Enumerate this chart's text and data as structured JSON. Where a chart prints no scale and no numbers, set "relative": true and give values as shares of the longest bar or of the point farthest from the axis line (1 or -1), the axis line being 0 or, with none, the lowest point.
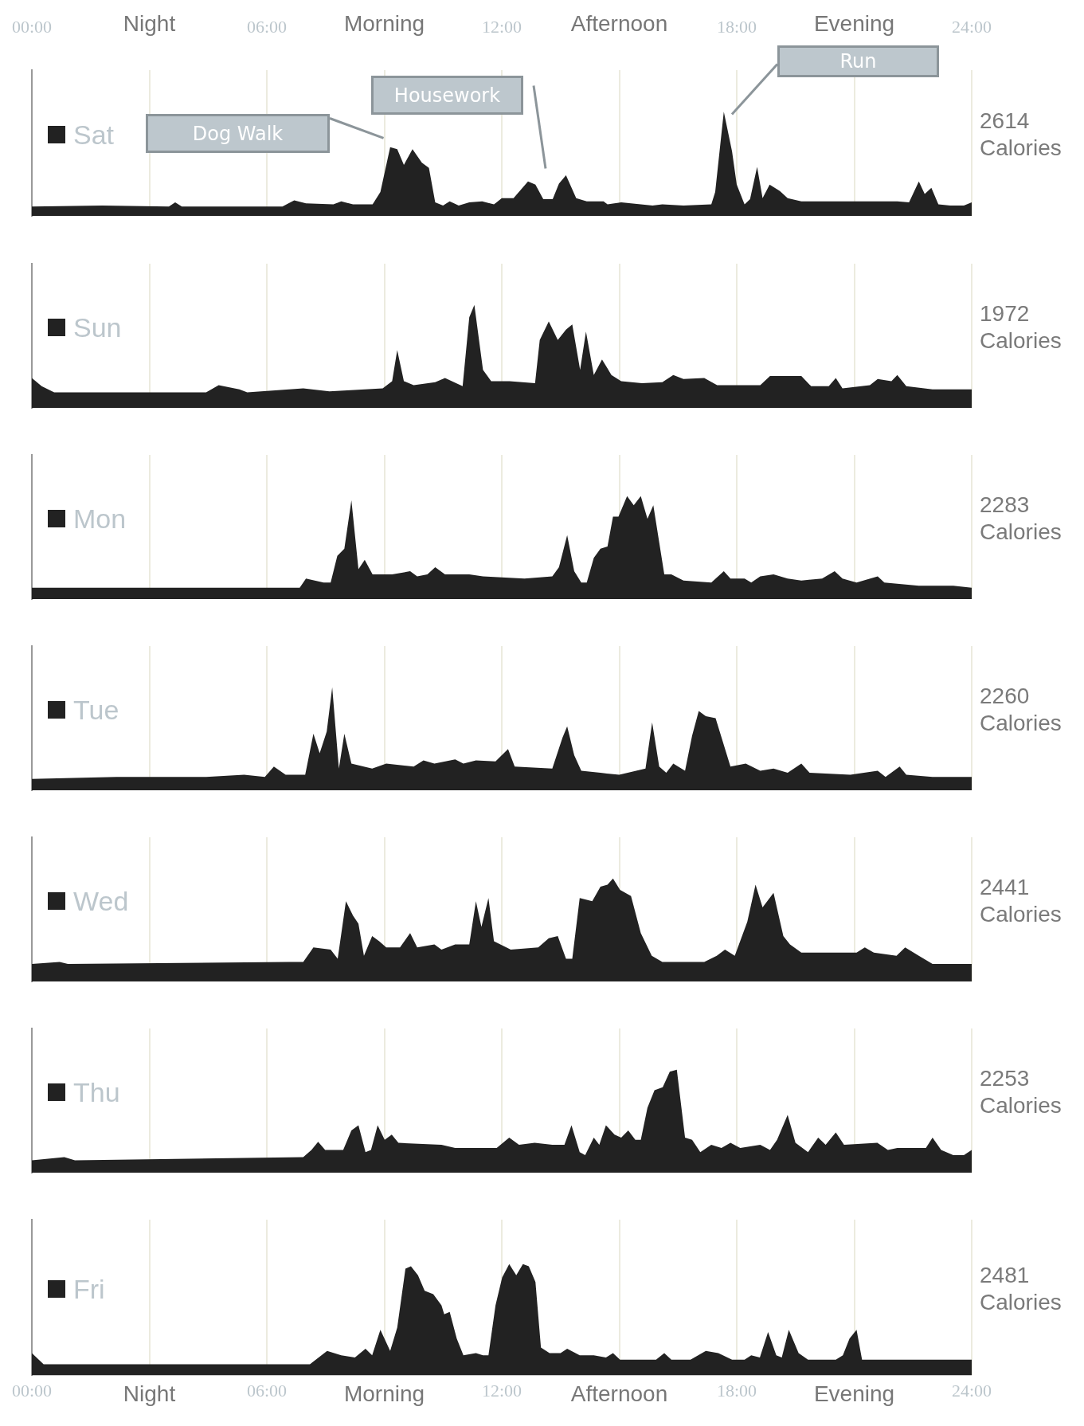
{
  "chart_data": [
    {
      "type": "area",
      "relative": true,
      "grid": "x",
      "legend": "left",
      "xlim": [
        0,
        24
      ],
      "xticks": [
        {
          "value": 0,
          "label": "00:00"
        },
        {
          "value": 3,
          "label": "Night"
        },
        {
          "value": 6,
          "label": "06:00"
        },
        {
          "value": 9,
          "label": "Morning"
        },
        {
          "value": 12,
          "label": "12:00"
        },
        {
          "value": 15,
          "label": "Afternoon"
        },
        {
          "value": 18,
          "label": "18:00"
        },
        {
          "value": 21,
          "label": "Evening"
        },
        {
          "value": 24,
          "label": "24:00"
        }
      ],
      "x": [
        0,
        1.8,
        3.5,
        3.66,
        3.83,
        6.4,
        6.7,
        7.0,
        7.7,
        7.9,
        8.2,
        8.7,
        8.9,
        9.15,
        9.33,
        9.5,
        9.72,
        9.96,
        10.14,
        10.3,
        10.5,
        10.67,
        10.9,
        11.17,
        11.5,
        11.8,
        12.0,
        12.3,
        12.67,
        12.86,
        13.06,
        13.3,
        13.46,
        13.64,
        13.9,
        14.17,
        14.6,
        14.7,
        15.05,
        15.85,
        16.1,
        16.64,
        17.35,
        17.45,
        17.67,
        17.88,
        18.0,
        18.2,
        18.34,
        18.52,
        18.66,
        18.84,
        19.1,
        19.3,
        19.65,
        20.35,
        21.24,
        22.1,
        22.4,
        22.65,
        22.8,
        22.97,
        23.15,
        23.45,
        23.8,
        24
      ],
      "series": [
        {
          "name": "Sat",
          "color": "#222222",
          "values": [
            0.09,
            0.1,
            0.09,
            0.13,
            0.09,
            0.09,
            0.15,
            0.12,
            0.11,
            0.14,
            0.11,
            0.11,
            0.23,
            0.66,
            0.64,
            0.49,
            0.64,
            0.51,
            0.46,
            0.13,
            0.1,
            0.14,
            0.1,
            0.13,
            0.14,
            0.11,
            0.17,
            0.17,
            0.33,
            0.3,
            0.16,
            0.16,
            0.31,
            0.39,
            0.17,
            0.14,
            0.14,
            0.11,
            0.13,
            0.1,
            0.11,
            0.1,
            0.11,
            0.23,
            1,
            0.62,
            0.3,
            0.11,
            0.16,
            0.47,
            0.17,
            0.3,
            0.24,
            0.17,
            0.14,
            0.14,
            0.14,
            0.14,
            0.13,
            0.33,
            0.21,
            0.27,
            0.11,
            0.1,
            0.1,
            0.13
          ]
        }
      ],
      "annotations": [
        "Dog Walk",
        "Housework",
        "Run",
        "2614 Calories"
      ]
    },
    {
      "type": "area",
      "relative": true,
      "grid": "x",
      "legend": "left",
      "tick_labels": false,
      "xlim": [
        0,
        24
      ],
      "xticks": [
        0,
        3,
        6,
        9,
        12,
        15,
        18,
        21,
        24
      ],
      "x": [
        0,
        0.25,
        0.57,
        4.45,
        4.77,
        5.3,
        5.5,
        6.93,
        7.6,
        8.96,
        9.2,
        9.33,
        9.5,
        9.75,
        10.3,
        10.55,
        11.0,
        11.17,
        11.3,
        11.52,
        11.73,
        12.2,
        12.85,
        12.97,
        13.2,
        13.43,
        13.64,
        13.8,
        14.0,
        14.15,
        14.35,
        14.56,
        14.8,
        15.05,
        15.58,
        16.1,
        16.38,
        16.64,
        17.17,
        17.5,
        18.6,
        18.85,
        19.65,
        19.9,
        20.35,
        20.53,
        20.7,
        21.4,
        21.6,
        21.95,
        22.1,
        22.33,
        23,
        24
      ],
      "series": [
        {
          "name": "Sun",
          "color": "#222222",
          "values": [
            0.29,
            0.21,
            0.15,
            0.15,
            0.22,
            0.18,
            0.15,
            0.19,
            0.16,
            0.19,
            0.26,
            0.56,
            0.26,
            0.22,
            0.25,
            0.29,
            0.21,
            0.88,
            1,
            0.37,
            0.26,
            0.26,
            0.24,
            0.66,
            0.84,
            0.66,
            0.76,
            0.81,
            0.37,
            0.74,
            0.32,
            0.47,
            0.32,
            0.26,
            0.24,
            0.25,
            0.32,
            0.28,
            0.29,
            0.22,
            0.22,
            0.31,
            0.31,
            0.21,
            0.21,
            0.29,
            0.19,
            0.22,
            0.28,
            0.26,
            0.32,
            0.21,
            0.18,
            0.18
          ]
        }
      ],
      "annotations": [
        "1972 Calories"
      ]
    },
    {
      "type": "area",
      "relative": true,
      "grid": "x",
      "legend": "left",
      "tick_labels": false,
      "xlim": [
        0,
        24
      ],
      "xticks": [
        0,
        3,
        6,
        9,
        12,
        15,
        18,
        21,
        24
      ],
      "x": [
        0,
        6.84,
        7.0,
        7.45,
        7.63,
        7.8,
        7.98,
        8.16,
        8.34,
        8.5,
        8.7,
        9.2,
        9.66,
        9.84,
        10.1,
        10.3,
        10.55,
        11.17,
        11.52,
        12.58,
        13.29,
        13.46,
        13.67,
        13.85,
        14.03,
        14.17,
        14.35,
        14.52,
        14.7,
        14.84,
        14.98,
        15.2,
        15.37,
        15.55,
        15.72,
        15.87,
        16.15,
        16.33,
        16.64,
        17.35,
        17.67,
        17.84,
        18.2,
        18.37,
        18.6,
        18.94,
        19.3,
        19.65,
        20.18,
        20.5,
        20.7,
        21.06,
        21.6,
        21.77,
        22.65,
        23.53,
        24
      ],
      "series": [
        {
          "name": "Mon",
          "color": "#222222",
          "values": [
            0.11,
            0.11,
            0.2,
            0.16,
            0.16,
            0.42,
            0.49,
            0.96,
            0.29,
            0.38,
            0.24,
            0.24,
            0.27,
            0.22,
            0.24,
            0.31,
            0.24,
            0.24,
            0.22,
            0.2,
            0.22,
            0.31,
            0.62,
            0.27,
            0.16,
            0.16,
            0.4,
            0.49,
            0.51,
            0.8,
            0.8,
            1,
            0.91,
            1,
            0.78,
            0.91,
            0.24,
            0.24,
            0.18,
            0.16,
            0.27,
            0.2,
            0.2,
            0.16,
            0.22,
            0.24,
            0.2,
            0.18,
            0.2,
            0.27,
            0.2,
            0.16,
            0.22,
            0.16,
            0.13,
            0.13,
            0.11
          ]
        }
      ],
      "annotations": [
        "2283 Calories"
      ]
    },
    {
      "type": "area",
      "relative": true,
      "grid": "x",
      "legend": "left",
      "tick_labels": false,
      "xlim": [
        0,
        24
      ],
      "xticks": [
        0,
        3,
        6,
        9,
        12,
        15,
        18,
        21,
        24
      ],
      "x": [
        0,
        2.16,
        4.45,
        5.42,
        5.95,
        6.18,
        6.48,
        6.98,
        7.19,
        7.35,
        7.53,
        7.67,
        7.84,
        7.98,
        8.16,
        8.69,
        9.05,
        9.75,
        10.0,
        10.28,
        10.81,
        11.02,
        11.34,
        11.84,
        12.16,
        12.33,
        13.29,
        13.55,
        13.67,
        13.85,
        14.03,
        14.52,
        15.0,
        15.67,
        15.84,
        16.02,
        16.2,
        16.38,
        16.68,
        16.86,
        17.03,
        17.21,
        17.46,
        17.84,
        18.23,
        18.6,
        18.94,
        19.3,
        19.65,
        19.86,
        20.9,
        21.6,
        21.8,
        22.16,
        22.33,
        23.0,
        24
      ],
      "series": [
        {
          "name": "Tue",
          "color": "#222222",
          "values": [
            0.11,
            0.13,
            0.13,
            0.15,
            0.13,
            0.23,
            0.15,
            0.15,
            0.55,
            0.36,
            0.57,
            1,
            0.21,
            0.55,
            0.26,
            0.21,
            0.26,
            0.23,
            0.29,
            0.26,
            0.3,
            0.26,
            0.29,
            0.28,
            0.4,
            0.23,
            0.21,
            0.51,
            0.62,
            0.34,
            0.19,
            0.17,
            0.15,
            0.21,
            0.66,
            0.23,
            0.17,
            0.26,
            0.19,
            0.53,
            0.77,
            0.72,
            0.7,
            0.23,
            0.26,
            0.19,
            0.21,
            0.17,
            0.26,
            0.17,
            0.15,
            0.19,
            0.13,
            0.23,
            0.15,
            0.13,
            0.13
          ]
        }
      ],
      "annotations": [
        "2260 Calories"
      ]
    },
    {
      "type": "area",
      "relative": true,
      "grid": "x",
      "legend": "left",
      "tick_labels": false,
      "xlim": [
        0,
        24
      ],
      "xticks": [
        0,
        3,
        6,
        9,
        12,
        15,
        18,
        21,
        24
      ],
      "x": [
        0,
        0.71,
        0.92,
        6.57,
        6.93,
        7.19,
        7.63,
        7.81,
        8.02,
        8.2,
        8.34,
        8.48,
        8.69,
        8.87,
        9.05,
        9.4,
        9.66,
        9.84,
        10.28,
        10.46,
        10.81,
        11.17,
        11.34,
        11.48,
        11.66,
        11.8,
        12.23,
        12.93,
        13.2,
        13.43,
        13.64,
        13.8,
        13.99,
        14.31,
        14.52,
        14.7,
        14.84,
        15.02,
        15.3,
        15.55,
        15.83,
        16.1,
        17.17,
        17.49,
        17.7,
        17.95,
        18.27,
        18.48,
        18.66,
        18.94,
        19.19,
        19.36,
        19.65,
        20.35,
        21.06,
        21.27,
        21.5,
        22.08,
        22.3,
        22.65,
        23.0,
        24
      ],
      "series": [
        {
          "name": "Wed",
          "color": "#222222",
          "values": [
            0.17,
            0.19,
            0.17,
            0.19,
            0.19,
            0.33,
            0.31,
            0.22,
            0.78,
            0.64,
            0.56,
            0.25,
            0.44,
            0.39,
            0.33,
            0.33,
            0.47,
            0.33,
            0.36,
            0.31,
            0.36,
            0.36,
            0.78,
            0.53,
            0.81,
            0.39,
            0.31,
            0.33,
            0.42,
            0.44,
            0.22,
            0.22,
            0.81,
            0.78,
            0.92,
            0.94,
            1,
            0.89,
            0.83,
            0.47,
            0.25,
            0.19,
            0.19,
            0.25,
            0.31,
            0.25,
            0.58,
            0.94,
            0.72,
            0.86,
            0.44,
            0.36,
            0.28,
            0.28,
            0.28,
            0.33,
            0.28,
            0.25,
            0.33,
            0.25,
            0.17,
            0.17
          ]
        }
      ],
      "annotations": [
        "2441 Calories"
      ]
    },
    {
      "type": "area",
      "relative": true,
      "grid": "x",
      "legend": "left",
      "tick_labels": false,
      "xlim": [
        0,
        24
      ],
      "xticks": [
        0,
        3,
        6,
        9,
        12,
        15,
        18,
        21,
        24
      ],
      "x": [
        0,
        0.83,
        1.1,
        6.93,
        7.14,
        7.31,
        7.49,
        7.95,
        8.16,
        8.34,
        8.52,
        8.66,
        8.83,
        9.01,
        9.19,
        9.36,
        10.46,
        10.81,
        11.87,
        12.19,
        12.44,
        12.84,
        13.29,
        13.6,
        13.78,
        13.99,
        14.13,
        14.35,
        14.49,
        14.66,
        14.88,
        15.05,
        15.23,
        15.41,
        15.55,
        15.72,
        15.9,
        16.11,
        16.29,
        16.47,
        16.68,
        16.86,
        17.07,
        17.35,
        17.61,
        17.84,
        18.09,
        18.6,
        18.85,
        19.03,
        19.3,
        19.5,
        19.82,
        20.08,
        20.27,
        20.53,
        20.74,
        21.59,
        21.86,
        22.1,
        22.83,
        23.0,
        23.22,
        23.53,
        23.8,
        24
      ],
      "series": [
        {
          "name": "Thu",
          "color": "#222222",
          "values": [
            0.12,
            0.15,
            0.12,
            0.15,
            0.22,
            0.3,
            0.22,
            0.22,
            0.41,
            0.46,
            0.2,
            0.22,
            0.46,
            0.32,
            0.37,
            0.29,
            0.27,
            0.24,
            0.24,
            0.34,
            0.27,
            0.29,
            0.27,
            0.27,
            0.46,
            0.2,
            0.17,
            0.34,
            0.27,
            0.46,
            0.37,
            0.34,
            0.41,
            0.32,
            0.32,
            0.63,
            0.8,
            0.83,
            0.98,
            1,
            0.34,
            0.32,
            0.2,
            0.27,
            0.24,
            0.29,
            0.24,
            0.27,
            0.22,
            0.32,
            0.56,
            0.29,
            0.2,
            0.34,
            0.27,
            0.39,
            0.27,
            0.29,
            0.22,
            0.24,
            0.24,
            0.34,
            0.22,
            0.17,
            0.17,
            0.22
          ]
        }
      ],
      "annotations": [
        "2253 Calories"
      ]
    },
    {
      "type": "area",
      "relative": true,
      "grid": "x",
      "legend": "left",
      "xlim": [
        0,
        24
      ],
      "xticks": [
        {
          "value": 0,
          "label": "00:00"
        },
        {
          "value": 3,
          "label": "Night"
        },
        {
          "value": 6,
          "label": "06:00"
        },
        {
          "value": 9,
          "label": "Morning"
        },
        {
          "value": 12,
          "label": "12:00"
        },
        {
          "value": 15,
          "label": "Afternoon"
        },
        {
          "value": 18,
          "label": "18:00"
        },
        {
          "value": 21,
          "label": "Evening"
        },
        {
          "value": 24,
          "label": "24:00"
        }
      ],
      "x": [
        0,
        0.3,
        7.1,
        7.54,
        7.9,
        8.25,
        8.52,
        8.69,
        8.9,
        9.15,
        9.33,
        9.54,
        9.68,
        9.86,
        10.03,
        10.25,
        10.46,
        10.53,
        10.67,
        10.85,
        11.02,
        11.34,
        11.52,
        11.66,
        11.84,
        12.01,
        12.19,
        12.37,
        12.54,
        12.69,
        12.86,
        13.0,
        13.22,
        13.5,
        13.67,
        13.99,
        14.35,
        14.66,
        14.84,
        15.02,
        15.94,
        16.15,
        16.33,
        16.82,
        17.21,
        17.53,
        17.88,
        18.2,
        18.37,
        18.59,
        18.8,
        19.01,
        19.15,
        19.33,
        19.58,
        19.82,
        20.53,
        20.71,
        20.88,
        21.06,
        21.2,
        24
      ],
      "series": [
        {
          "name": "Fri",
          "color": "#222222",
          "values": [
            0.2,
            0.1,
            0.1,
            0.22,
            0.18,
            0.16,
            0.24,
            0.18,
            0.41,
            0.22,
            0.43,
            0.96,
            0.98,
            0.9,
            0.76,
            0.73,
            0.63,
            0.55,
            0.57,
            0.33,
            0.18,
            0.2,
            0.18,
            0.18,
            0.63,
            0.88,
            1,
            0.9,
            1,
            0.98,
            0.84,
            0.25,
            0.2,
            0.2,
            0.24,
            0.18,
            0.18,
            0.16,
            0.2,
            0.14,
            0.14,
            0.2,
            0.14,
            0.14,
            0.22,
            0.2,
            0.14,
            0.14,
            0.18,
            0.16,
            0.39,
            0.18,
            0.16,
            0.41,
            0.2,
            0.14,
            0.14,
            0.18,
            0.33,
            0.41,
            0.14,
            0.14
          ]
        }
      ],
      "annotations": [
        "2481 Calories"
      ]
    }
  ]
}
